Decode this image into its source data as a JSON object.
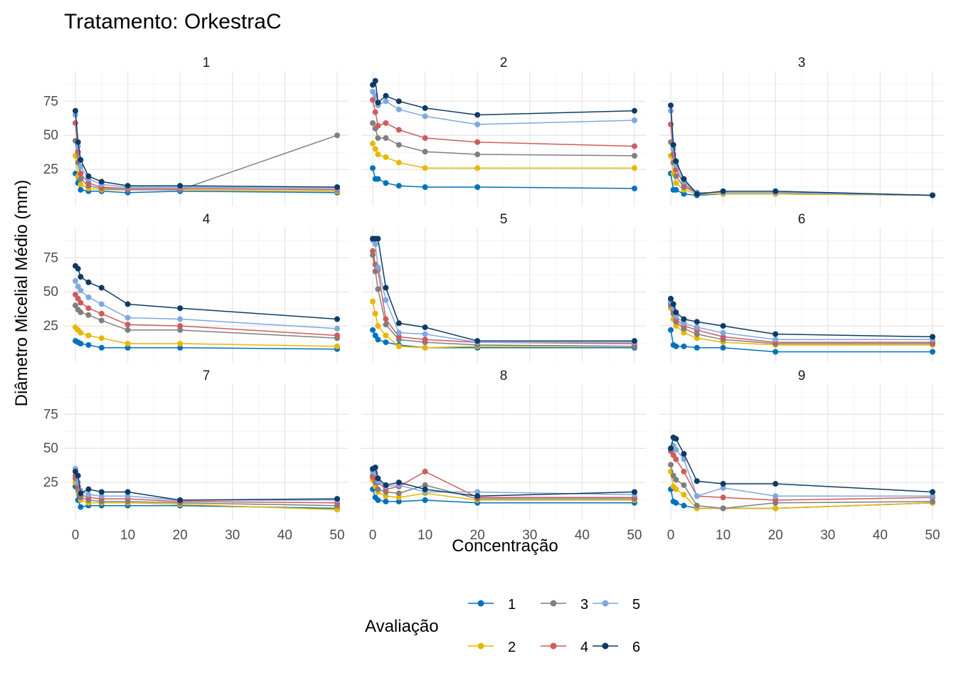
{
  "title": "Tratamento: OrkestraC",
  "chart_data": {
    "type": "line",
    "xlabel": "Concentração",
    "ylabel": "Diâmetro Micelial Médio (mm)",
    "xlim": [
      0,
      50
    ],
    "ylim": [
      0,
      95
    ],
    "xticks": [
      0,
      10,
      20,
      30,
      40,
      50
    ],
    "yticks": [
      25,
      50,
      75
    ],
    "grid": "on",
    "legend_position": "bottom",
    "legend_title": "Avaliação",
    "x": [
      0,
      0.5,
      1,
      2.5,
      5,
      10,
      20,
      50
    ],
    "series_meta": [
      {
        "name": "1",
        "color": "#0072BD"
      },
      {
        "name": "2",
        "color": "#E6B800"
      },
      {
        "name": "3",
        "color": "#7F7F7F"
      },
      {
        "name": "4",
        "color": "#CD5C5C"
      },
      {
        "name": "5",
        "color": "#7FA8E0"
      },
      {
        "name": "6",
        "color": "#0D3B66"
      }
    ],
    "panels": [
      {
        "label": "1",
        "series": [
          [
            22,
            15,
            10,
            9,
            9,
            8,
            9,
            8
          ],
          [
            35,
            20,
            14,
            11,
            10,
            10,
            10,
            9
          ],
          [
            46,
            30,
            18,
            13,
            11,
            10,
            10,
            50
          ],
          [
            59,
            38,
            22,
            15,
            12,
            11,
            11,
            10
          ],
          [
            65,
            42,
            27,
            18,
            14,
            12,
            12,
            11
          ],
          [
            68,
            45,
            32,
            20,
            16,
            13,
            13,
            12
          ]
        ]
      },
      {
        "label": "2",
        "series": [
          [
            26,
            18,
            18,
            15,
            13,
            12,
            12,
            11
          ],
          [
            44,
            40,
            36,
            34,
            30,
            26,
            26,
            26
          ],
          [
            59,
            55,
            48,
            48,
            43,
            38,
            36,
            35
          ],
          [
            76,
            67,
            57,
            59,
            54,
            48,
            45,
            42
          ],
          [
            82,
            79,
            72,
            75,
            69,
            64,
            58,
            61
          ],
          [
            87,
            90,
            74,
            79,
            75,
            70,
            65,
            68
          ]
        ]
      },
      {
        "label": "3",
        "series": [
          [
            22,
            10,
            10,
            7,
            6,
            7,
            7,
            6
          ],
          [
            35,
            22,
            15,
            10,
            7,
            7,
            7,
            6
          ],
          [
            45,
            30,
            20,
            12,
            8,
            8,
            8,
            6
          ],
          [
            58,
            36,
            25,
            14,
            8,
            8,
            8,
            6
          ],
          [
            68,
            40,
            28,
            16,
            8,
            8,
            8,
            6
          ],
          [
            72,
            43,
            31,
            18,
            7,
            9,
            9,
            6
          ]
        ]
      },
      {
        "label": "4",
        "series": [
          [
            14,
            13,
            12,
            11,
            9,
            9,
            9,
            8
          ],
          [
            24,
            22,
            20,
            18,
            16,
            12,
            12,
            10
          ],
          [
            40,
            37,
            35,
            33,
            29,
            22,
            22,
            16
          ],
          [
            48,
            45,
            42,
            38,
            34,
            26,
            25,
            18
          ],
          [
            58,
            54,
            51,
            46,
            41,
            31,
            30,
            23
          ],
          [
            69,
            67,
            61,
            57,
            53,
            41,
            38,
            30
          ]
        ]
      },
      {
        "label": "5",
        "series": [
          [
            22,
            18,
            15,
            13,
            11,
            9,
            9,
            9
          ],
          [
            43,
            34,
            25,
            18,
            10,
            9,
            10,
            10
          ],
          [
            77,
            65,
            52,
            26,
            15,
            13,
            11,
            10
          ],
          [
            80,
            70,
            66,
            30,
            17,
            15,
            13,
            12
          ],
          [
            88,
            85,
            68,
            44,
            20,
            19,
            13,
            13
          ],
          [
            89,
            89,
            89,
            53,
            27,
            24,
            14,
            14
          ]
        ]
      },
      {
        "label": "6",
        "series": [
          [
            22,
            11,
            10,
            10,
            9,
            9,
            6,
            6
          ],
          [
            38,
            30,
            25,
            20,
            16,
            13,
            11,
            11
          ],
          [
            40,
            34,
            28,
            23,
            19,
            15,
            12,
            12
          ],
          [
            42,
            36,
            30,
            25,
            22,
            17,
            13,
            13
          ],
          [
            43,
            38,
            32,
            27,
            24,
            20,
            15,
            15
          ],
          [
            45,
            41,
            35,
            30,
            28,
            25,
            19,
            17
          ]
        ]
      },
      {
        "label": "7",
        "series": [
          [
            22,
            12,
            7,
            8,
            8,
            8,
            8,
            6
          ],
          [
            25,
            18,
            12,
            10,
            10,
            10,
            9,
            5
          ],
          [
            28,
            20,
            14,
            12,
            11,
            11,
            10,
            8
          ],
          [
            30,
            22,
            16,
            14,
            13,
            13,
            11,
            10
          ],
          [
            35,
            25,
            19,
            16,
            15,
            15,
            12,
            12
          ],
          [
            33,
            30,
            17,
            20,
            18,
            18,
            12,
            13
          ]
        ]
      },
      {
        "label": "8",
        "series": [
          [
            20,
            14,
            12,
            11,
            11,
            12,
            10,
            10
          ],
          [
            27,
            22,
            18,
            15,
            14,
            17,
            12,
            12
          ],
          [
            30,
            25,
            20,
            18,
            17,
            23,
            13,
            13
          ],
          [
            29,
            28,
            25,
            20,
            22,
            33,
            14,
            14
          ],
          [
            33,
            32,
            26,
            22,
            23,
            18,
            18,
            16
          ],
          [
            35,
            36,
            28,
            23,
            25,
            20,
            15,
            18
          ]
        ]
      },
      {
        "label": "9",
        "series": [
          [
            20,
            11,
            10,
            8,
            6,
            6,
            6,
            10
          ],
          [
            33,
            22,
            20,
            16,
            6,
            6,
            6,
            10
          ],
          [
            38,
            30,
            27,
            23,
            8,
            6,
            10,
            11
          ],
          [
            48,
            45,
            42,
            33,
            15,
            14,
            12,
            14
          ],
          [
            50,
            52,
            49,
            42,
            15,
            21,
            15,
            15
          ],
          [
            50,
            58,
            57,
            46,
            26,
            24,
            24,
            18
          ]
        ]
      }
    ]
  }
}
